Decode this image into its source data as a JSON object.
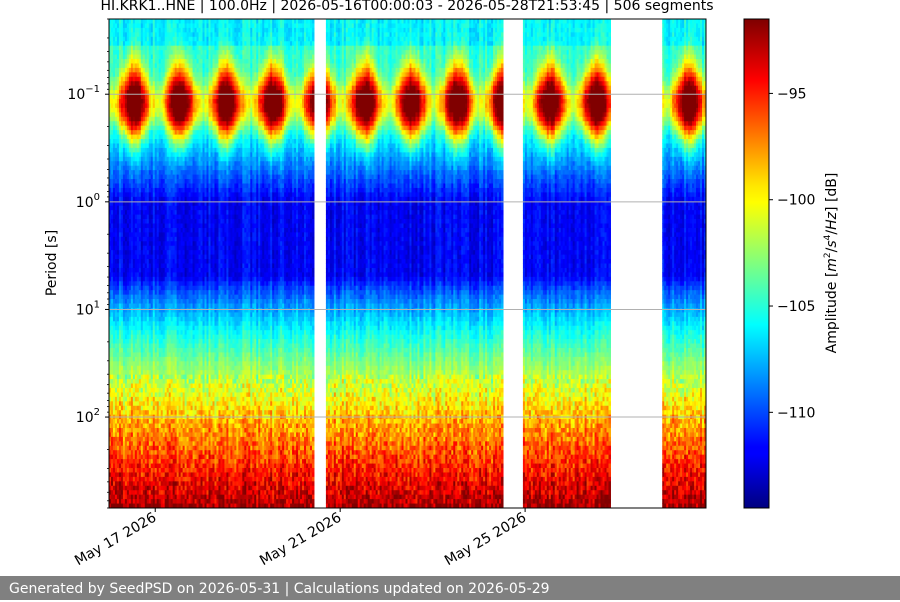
{
  "chart_data": {
    "type": "heatmap",
    "title": "HI.KRK1..HNE | 100.0Hz | 2026-05-16T00:00:03 - 2026-05-28T21:53:45 | 506 segments",
    "xlabel": "",
    "ylabel": "Period [s]",
    "colorbar_label": "Amplitude [m²/s⁴/Hz] [dB]",
    "colormap": "jet",
    "x_range": [
      "2026-05-16T00:00:03",
      "2026-05-28T21:53:45"
    ],
    "y_scale": "log",
    "y_inverted": true,
    "y_range": [
      0.02,
      700
    ],
    "y_ticks": [
      {
        "value": 0.1,
        "base": "10",
        "exp": "−1"
      },
      {
        "value": 1,
        "base": "10",
        "exp": "0"
      },
      {
        "value": 10,
        "base": "10",
        "exp": "1"
      },
      {
        "value": 100,
        "base": "10",
        "exp": "2"
      }
    ],
    "x_ticks": [
      {
        "label": "May 17 2026",
        "value": "2026-05-17"
      },
      {
        "label": "May 21 2026",
        "value": "2026-05-21"
      },
      {
        "label": "May 25 2026",
        "value": "2026-05-25"
      }
    ],
    "colorbar_range": [
      -114.5,
      -91.5
    ],
    "colorbar_ticks": [
      {
        "label": "−95",
        "value": -95
      },
      {
        "label": "−100",
        "value": -100
      },
      {
        "label": "−105",
        "value": -105
      },
      {
        "label": "−110",
        "value": -110
      }
    ],
    "data_gaps": [
      [
        "2026-05-20T10:30",
        "2026-05-20T16:15"
      ],
      [
        "2026-05-24T12:15",
        "2026-05-24T22:50"
      ],
      [
        "2026-05-26T20:45",
        "2026-05-27T23:30"
      ]
    ],
    "microseism_peak_period_s": 0.12,
    "grid": true
  },
  "footer": {
    "text": "Generated by SeedPSD on 2026-05-31 | Calculations updated on 2026-05-29"
  }
}
